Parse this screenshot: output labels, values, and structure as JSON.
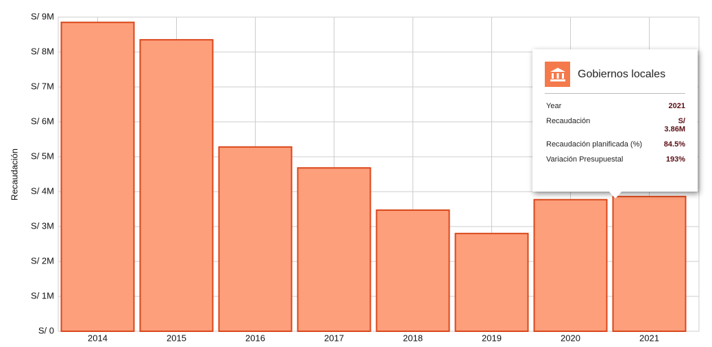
{
  "chart_data": {
    "type": "bar",
    "y_axis_label": "Recaudación",
    "categories": [
      "2014",
      "2015",
      "2016",
      "2017",
      "2018",
      "2019",
      "2020",
      "2021"
    ],
    "values": [
      8850000,
      8350000,
      5280000,
      4680000,
      3470000,
      2800000,
      3770000,
      3860000
    ],
    "color": "#fd9f7b",
    "edge_color": "#d9461a",
    "ylim": [
      0,
      9000000
    ],
    "yticks": [
      {
        "value": 0,
        "label": "S/ 0"
      },
      {
        "value": 1000000,
        "label": "S/ 1M"
      },
      {
        "value": 2000000,
        "label": "S/ 2M"
      },
      {
        "value": 3000000,
        "label": "S/ 3M"
      },
      {
        "value": 4000000,
        "label": "S/ 4M"
      },
      {
        "value": 5000000,
        "label": "S/ 5M"
      },
      {
        "value": 6000000,
        "label": "S/ 6M"
      },
      {
        "value": 7000000,
        "label": "S/ 7M"
      },
      {
        "value": 8000000,
        "label": "S/ 8M"
      },
      {
        "value": 9000000,
        "label": "S/ 9M"
      }
    ],
    "grid": true
  },
  "tooltip": {
    "title": "Gobiernos locales",
    "rows": [
      [
        "Year",
        "2021"
      ],
      [
        "Recaudación",
        "S/ 3.86M"
      ],
      [
        "Recaudación planificada (%)",
        "84.5%"
      ],
      [
        "Variación Presupuestal",
        "193%"
      ]
    ]
  }
}
